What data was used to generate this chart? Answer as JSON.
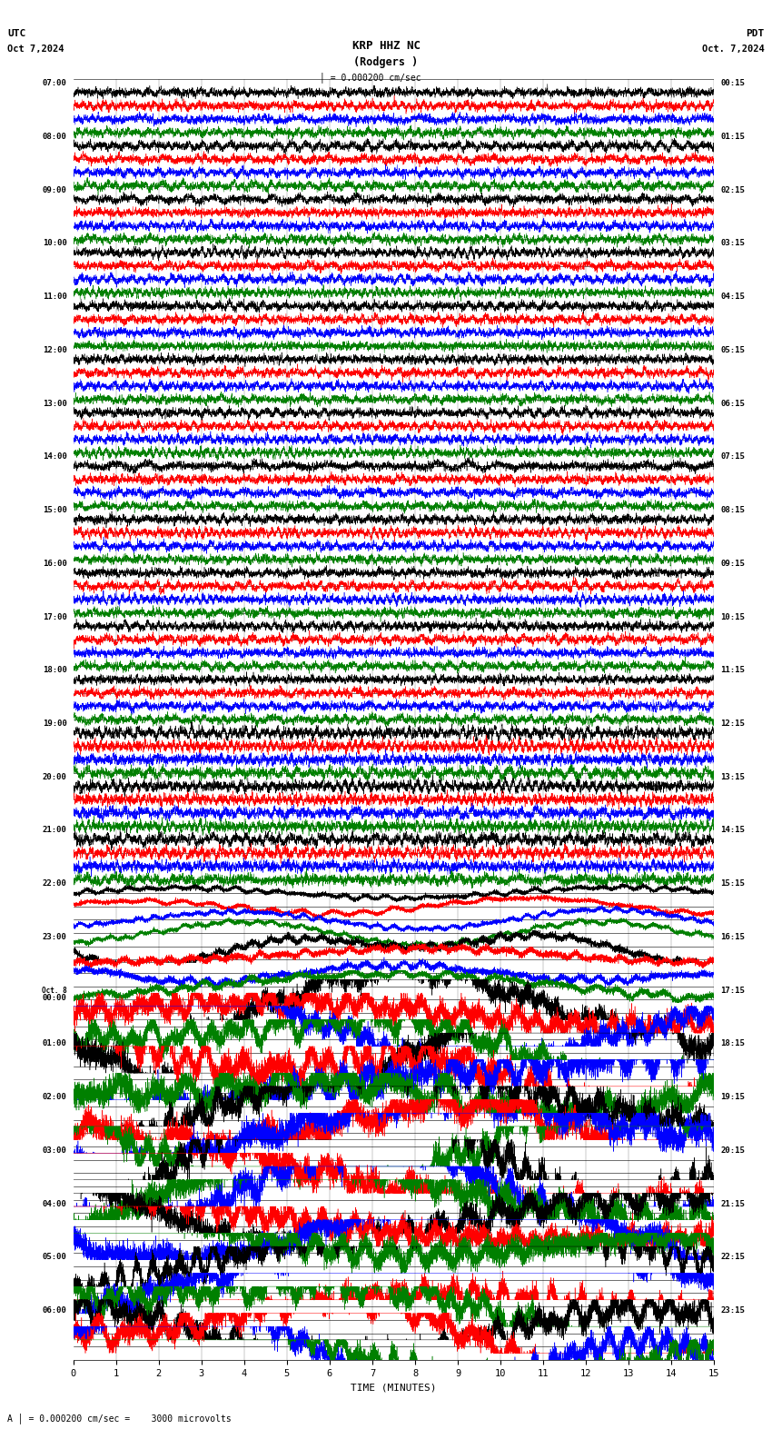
{
  "title_line1": "KRP HHZ NC",
  "title_line2": "(Rodgers )",
  "scale_label": "= 0.000200 cm/sec",
  "utc_label": "UTC",
  "date_left": "Oct 7,2024",
  "date_right": "Oct. 7,2024",
  "pdt_label": "PDT",
  "bottom_note": "A = 0.000200 cm/sec =    3000 microvolts",
  "xlabel": "TIME (MINUTES)",
  "left_times": [
    "07:00",
    "08:00",
    "09:00",
    "10:00",
    "11:00",
    "12:00",
    "13:00",
    "14:00",
    "15:00",
    "16:00",
    "17:00",
    "18:00",
    "19:00",
    "20:00",
    "21:00",
    "22:00",
    "23:00",
    "Oct. 8\n00:00",
    "01:00",
    "02:00",
    "03:00",
    "04:00",
    "05:00",
    "06:00"
  ],
  "right_times": [
    "00:15",
    "01:15",
    "02:15",
    "03:15",
    "04:15",
    "05:15",
    "06:15",
    "07:15",
    "08:15",
    "09:15",
    "10:15",
    "11:15",
    "12:15",
    "13:15",
    "14:15",
    "15:15",
    "16:15",
    "17:15",
    "18:15",
    "19:15",
    "20:15",
    "21:15",
    "22:15",
    "23:15"
  ],
  "colors": [
    "black",
    "red",
    "blue",
    "green"
  ],
  "bg_color": "#ffffff",
  "trace_linewidth": 0.35,
  "n_rows": 24,
  "traces_per_row": 4,
  "x_ticks": [
    0,
    1,
    2,
    3,
    4,
    5,
    6,
    7,
    8,
    9,
    10,
    11,
    12,
    13,
    14,
    15
  ],
  "fig_width": 8.5,
  "fig_height": 15.84,
  "dpi": 100
}
